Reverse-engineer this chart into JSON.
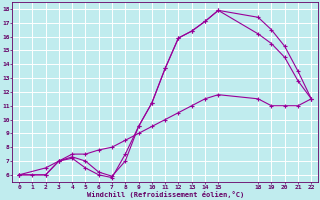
{
  "xlabel": "Windchill (Refroidissement éolien,°C)",
  "bg_color": "#c0ecee",
  "line_color": "#990099",
  "grid_color": "#ffffff",
  "axis_color": "#660066",
  "text_color": "#660066",
  "xlim": [
    -0.5,
    22.5
  ],
  "ylim": [
    5.5,
    18.5
  ],
  "xticks": [
    0,
    1,
    2,
    3,
    4,
    5,
    6,
    7,
    8,
    9,
    10,
    11,
    12,
    13,
    14,
    15,
    18,
    19,
    20,
    21,
    22
  ],
  "yticks": [
    6,
    7,
    8,
    9,
    10,
    11,
    12,
    13,
    14,
    15,
    16,
    17,
    18
  ],
  "line1_x": [
    0,
    1,
    2,
    3,
    4,
    5,
    6,
    7,
    8,
    9,
    10,
    11,
    12,
    13,
    14,
    15,
    18,
    19,
    20,
    21,
    22
  ],
  "line1_y": [
    6,
    6,
    6,
    7,
    7.2,
    6.5,
    6.0,
    5.8,
    7.5,
    9.5,
    11.2,
    13.7,
    15.9,
    16.4,
    17.1,
    17.9,
    17.4,
    16.5,
    15.3,
    13.5,
    11.5
  ],
  "line2_x": [
    0,
    2,
    3,
    4,
    5,
    6,
    7,
    8,
    9,
    10,
    11,
    12,
    13,
    14,
    15,
    18,
    19,
    20,
    21,
    22
  ],
  "line2_y": [
    6,
    6,
    7,
    7.3,
    7.0,
    6.2,
    5.9,
    7.0,
    9.5,
    11.2,
    13.7,
    15.9,
    16.4,
    17.1,
    17.9,
    16.2,
    15.5,
    14.5,
    12.8,
    11.5
  ],
  "line3_x": [
    0,
    2,
    3,
    4,
    5,
    6,
    7,
    8,
    9,
    10,
    11,
    12,
    13,
    14,
    15,
    18,
    19,
    20,
    21,
    22
  ],
  "line3_y": [
    6,
    6.5,
    7.0,
    7.5,
    7.5,
    7.8,
    8.0,
    8.5,
    9.0,
    9.5,
    10.0,
    10.5,
    11.0,
    11.5,
    11.8,
    11.5,
    11.0,
    11.0,
    11.0,
    11.5
  ]
}
